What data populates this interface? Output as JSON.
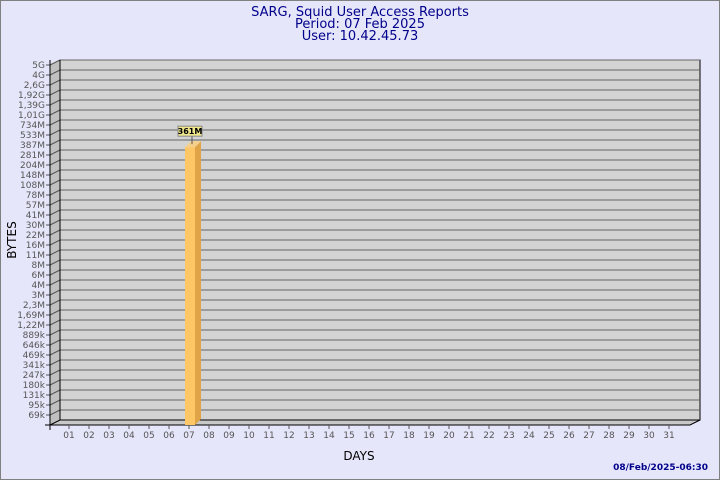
{
  "chart_data": {
    "type": "bar",
    "title": [
      "SARG, Squid User Access Reports",
      "Period: 07 Feb 2025",
      "User: 10.42.45.73"
    ],
    "xlabel": "DAYS",
    "ylabel": "BYTES",
    "y_scale": "log",
    "grid": true,
    "categories": [
      "01",
      "02",
      "03",
      "04",
      "05",
      "06",
      "07",
      "08",
      "09",
      "10",
      "11",
      "12",
      "13",
      "14",
      "15",
      "16",
      "17",
      "18",
      "19",
      "20",
      "21",
      "22",
      "23",
      "24",
      "25",
      "26",
      "27",
      "28",
      "29",
      "30",
      "31"
    ],
    "y_tick_labels": [
      "5G",
      "4G",
      "2,6G",
      "1,92G",
      "1,39G",
      "1,01G",
      "734M",
      "533M",
      "387M",
      "281M",
      "204M",
      "148M",
      "108M",
      "78M",
      "57M",
      "41M",
      "30M",
      "22M",
      "16M",
      "11M",
      "8M",
      "6M",
      "4M",
      "3M",
      "2,3M",
      "1,69M",
      "1,22M",
      "889k",
      "646k",
      "469k",
      "341k",
      "247k",
      "180k",
      "131k",
      "95k",
      "69k"
    ],
    "y_tick_values": [
      5000000000,
      4000000000,
      2600000000,
      1920000000,
      1390000000,
      1010000000,
      734000000,
      533000000,
      387000000,
      281000000,
      204000000,
      148000000,
      108000000,
      78000000,
      57000000,
      41000000,
      30000000,
      22000000,
      16000000,
      11000000,
      8000000,
      6000000,
      4000000,
      3000000,
      2300000,
      1690000,
      1220000,
      889000,
      646000,
      469000,
      341000,
      247000,
      180000,
      131000,
      95000,
      69000
    ],
    "values": [
      {
        "day": "07",
        "value": 361000000,
        "label": "361M"
      }
    ],
    "colors": {
      "bar_front": "#ffc666",
      "bar_side": "#e0a448",
      "wall": "#d3d3d3",
      "title": "#00008b",
      "background": "#e6e6fa"
    }
  },
  "footer": {
    "timestamp": "08/Feb/2025-06:30"
  }
}
